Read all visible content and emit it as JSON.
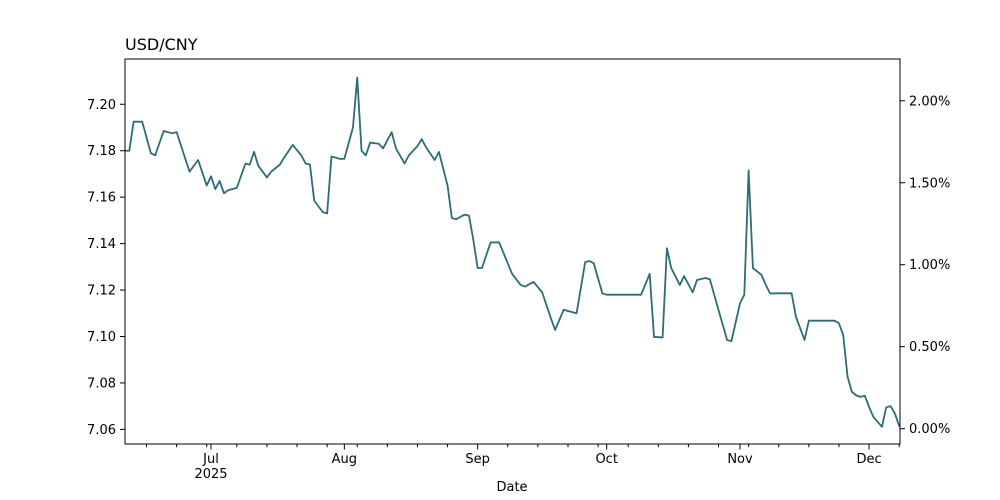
{
  "chart_data": {
    "type": "line",
    "title": "USD/CNY",
    "xlabel": "Date",
    "grid": false,
    "background_color": "#ffffff",
    "axis_color": "#000000",
    "x_start_date": "2025-06-11",
    "x_axis": {
      "year_label": "2025",
      "xlim_days": [
        0,
        180.2
      ],
      "major_ticks": [
        {
          "day": 20,
          "label": "Jul"
        },
        {
          "day": 51,
          "label": "Aug"
        },
        {
          "day": 82,
          "label": "Sep"
        },
        {
          "day": 112,
          "label": "Oct"
        },
        {
          "day": 143,
          "label": "Nov"
        },
        {
          "day": 173,
          "label": "Dec"
        }
      ],
      "minor_tick_days": [
        5,
        12,
        19,
        26,
        33,
        40,
        47,
        54,
        61,
        68,
        75,
        89,
        96,
        103,
        110,
        117,
        124,
        131,
        138,
        145,
        152,
        159,
        166,
        180
      ]
    },
    "y_axis_left": {
      "ylim": [
        7.0537,
        7.2195
      ],
      "tick_values": [
        7.06,
        7.08,
        7.1,
        7.12,
        7.14,
        7.16,
        7.18,
        7.2
      ],
      "tick_labels": [
        "7.06",
        "7.08",
        "7.10",
        "7.12",
        "7.14",
        "7.16",
        "7.18",
        "7.20"
      ]
    },
    "y_axis_right": {
      "base_value": 7.0603,
      "tick_pcts": [
        0.0,
        0.5,
        1.0,
        1.5,
        2.0
      ],
      "tick_labels": [
        "0.00%",
        "0.50%",
        "1.00%",
        "1.50%",
        "2.00%"
      ]
    },
    "series": [
      {
        "name": "USD/CNY",
        "color": "#2f6b78",
        "points_day_value": [
          [
            0,
            7.18
          ],
          [
            1,
            7.18
          ],
          [
            2,
            7.1925
          ],
          [
            4,
            7.1925
          ],
          [
            6,
            7.179
          ],
          [
            7,
            7.178
          ],
          [
            9,
            7.1885
          ],
          [
            11,
            7.1875
          ],
          [
            12,
            7.188
          ],
          [
            15,
            7.171
          ],
          [
            17,
            7.176
          ],
          [
            19,
            7.165
          ],
          [
            20,
            7.169
          ],
          [
            21,
            7.1635
          ],
          [
            22,
            7.167
          ],
          [
            23,
            7.1617
          ],
          [
            24,
            7.163
          ],
          [
            25,
            7.1635
          ],
          [
            26,
            7.164
          ],
          [
            28,
            7.1745
          ],
          [
            29,
            7.174
          ],
          [
            30,
            7.1795
          ],
          [
            31,
            7.1735
          ],
          [
            33,
            7.1685
          ],
          [
            34,
            7.171
          ],
          [
            36,
            7.174
          ],
          [
            37,
            7.177
          ],
          [
            39,
            7.1825
          ],
          [
            41,
            7.178
          ],
          [
            42,
            7.1745
          ],
          [
            43,
            7.174
          ],
          [
            44,
            7.1585
          ],
          [
            46,
            7.1535
          ],
          [
            47,
            7.153
          ],
          [
            48,
            7.1775
          ],
          [
            50,
            7.1765
          ],
          [
            51,
            7.1765
          ],
          [
            53,
            7.19
          ],
          [
            54,
            7.2115
          ],
          [
            55,
            7.18
          ],
          [
            56,
            7.178
          ],
          [
            57,
            7.1835
          ],
          [
            59,
            7.183
          ],
          [
            60,
            7.181
          ],
          [
            62,
            7.188
          ],
          [
            63,
            7.181
          ],
          [
            65,
            7.1745
          ],
          [
            66,
            7.178
          ],
          [
            68,
            7.182
          ],
          [
            69,
            7.185
          ],
          [
            70,
            7.1815
          ],
          [
            72,
            7.176
          ],
          [
            73,
            7.1795
          ],
          [
            75,
            7.165
          ],
          [
            76,
            7.151
          ],
          [
            77,
            7.1505
          ],
          [
            79,
            7.1525
          ],
          [
            80,
            7.152
          ],
          [
            81,
            7.1415
          ],
          [
            82,
            7.1295
          ],
          [
            83,
            7.1295
          ],
          [
            85,
            7.1405
          ],
          [
            87,
            7.1405
          ],
          [
            89,
            7.1315
          ],
          [
            90,
            7.127
          ],
          [
            92,
            7.1222
          ],
          [
            93,
            7.1215
          ],
          [
            95,
            7.1235
          ],
          [
            97,
            7.119
          ],
          [
            99,
            7.108
          ],
          [
            100,
            7.1028
          ],
          [
            102,
            7.1115
          ],
          [
            103,
            7.111
          ],
          [
            105,
            7.11
          ],
          [
            107,
            7.132
          ],
          [
            108,
            7.1325
          ],
          [
            109,
            7.1315
          ],
          [
            111,
            7.1185
          ],
          [
            112,
            7.118
          ],
          [
            115,
            7.118
          ],
          [
            118,
            7.118
          ],
          [
            120,
            7.118
          ],
          [
            122,
            7.127
          ],
          [
            123,
            7.0998
          ],
          [
            125,
            7.0996
          ],
          [
            126,
            7.138
          ],
          [
            127,
            7.1295
          ],
          [
            129,
            7.1222
          ],
          [
            130,
            7.126
          ],
          [
            132,
            7.119
          ],
          [
            133,
            7.1243
          ],
          [
            135,
            7.1252
          ],
          [
            136,
            7.1246
          ],
          [
            138,
            7.1114
          ],
          [
            140,
            7.0985
          ],
          [
            141,
            7.098
          ],
          [
            143,
            7.1143
          ],
          [
            144,
            7.118
          ],
          [
            145,
            7.1715
          ],
          [
            146,
            7.1295
          ],
          [
            148,
            7.1265
          ],
          [
            149,
            7.1222
          ],
          [
            150,
            7.1185
          ],
          [
            152,
            7.1186
          ],
          [
            155,
            7.1186
          ],
          [
            156,
            7.1085
          ],
          [
            158,
            7.0985
          ],
          [
            159,
            7.1068
          ],
          [
            162,
            7.1068
          ],
          [
            165,
            7.1068
          ],
          [
            166,
            7.1057
          ],
          [
            167,
            7.1006
          ],
          [
            168,
            7.0827
          ],
          [
            169,
            7.0762
          ],
          [
            170,
            7.0747
          ],
          [
            171,
            7.074
          ],
          [
            172,
            7.0745
          ],
          [
            173,
            7.0697
          ],
          [
            174,
            7.0654
          ],
          [
            176,
            7.0611
          ],
          [
            177,
            7.0695
          ],
          [
            178,
            7.07
          ],
          [
            179,
            7.0669
          ],
          [
            180,
            7.0615
          ]
        ]
      }
    ]
  }
}
